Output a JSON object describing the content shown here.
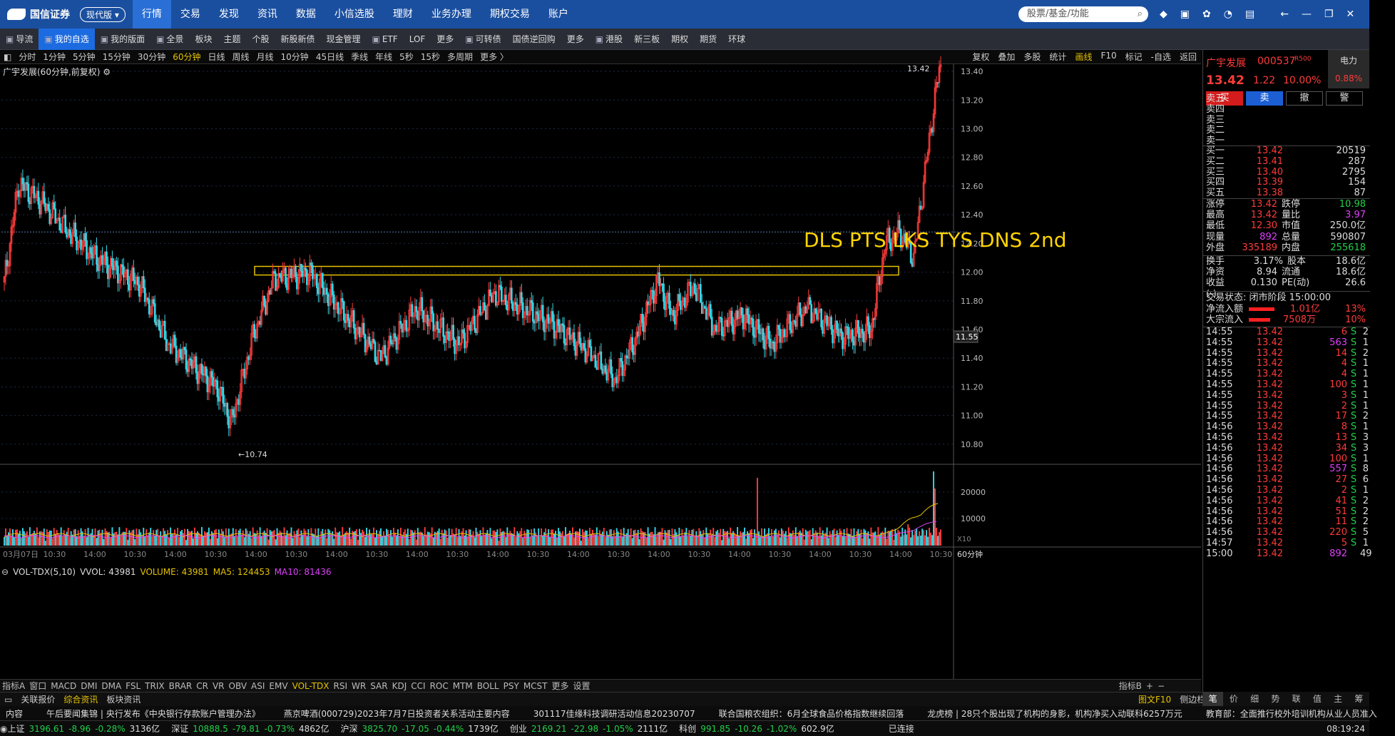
{
  "app": {
    "brand": "国信证券",
    "edition": "现代版"
  },
  "nav": {
    "tabs": [
      "行情",
      "交易",
      "发现",
      "资讯",
      "数据",
      "小信选股",
      "理财",
      "业务办理",
      "期权交易",
      "账户"
    ],
    "search_placeholder": "股票/基金/功能"
  },
  "toolbar": {
    "items": [
      {
        "label": "导流",
        "icon": "send-icon"
      },
      {
        "label": "我的自选",
        "icon": "heart-icon",
        "active": true
      },
      {
        "label": "我的版面",
        "icon": "layout-icon"
      },
      {
        "label": "全景",
        "icon": "chart-icon"
      },
      {
        "label": "板块"
      },
      {
        "label": "主题"
      },
      {
        "label": "个股"
      },
      {
        "label": "新股新债"
      },
      {
        "label": "现金管理"
      },
      {
        "label": "ETF",
        "icon": "grid-icon"
      },
      {
        "label": "LOF"
      },
      {
        "label": "更多"
      },
      {
        "label": "可转债",
        "icon": "bond-icon"
      },
      {
        "label": "国债逆回购"
      },
      {
        "label": "更多"
      },
      {
        "label": "港股",
        "icon": "hk-icon"
      },
      {
        "label": "新三板"
      },
      {
        "label": "期权"
      },
      {
        "label": "期货"
      },
      {
        "label": "环球"
      }
    ]
  },
  "periods": {
    "items": [
      "分时",
      "1分钟",
      "5分钟",
      "15分钟",
      "30分钟",
      "60分钟",
      "日线",
      "周线",
      "月线",
      "10分钟",
      "45日线",
      "季线",
      "年线",
      "5秒",
      "15秒",
      "多周期",
      "更多 〉"
    ],
    "active": "60分钟",
    "right": [
      "复权",
      "叠加",
      "多股",
      "统计",
      "画线",
      "F10",
      "标记",
      "-自选",
      "返回"
    ]
  },
  "chart": {
    "title": "广宇发展(60分钟,前复权)",
    "annotation": "DLS PTS LKS TYS DNS 2nd",
    "high_label": "13.42",
    "low_label": "10.74",
    "current_price_tag": "11.55",
    "period_label": "60分钟",
    "x_multiplier": "X10"
  },
  "volume": {
    "legend": [
      {
        "text": "VOL-TDX(5,10)",
        "color": "#dddddd"
      },
      {
        "text": "VVOL: 43981",
        "color": "#dddddd"
      },
      {
        "text": "VOLUME: 43981",
        "color": "#e6c200"
      },
      {
        "text": "MA5: 124453",
        "color": "#e6c200"
      },
      {
        "text": "MA10: 81436",
        "color": "#e040fb"
      }
    ]
  },
  "chart_data": {
    "type": "candlestick",
    "title": "广宇发展(60分钟,前复权)",
    "y_ticks": [
      "13.40",
      "13.20",
      "13.00",
      "12.80",
      "12.60",
      "12.40",
      "12.20",
      "12.00",
      "11.80",
      "11.60",
      "11.40",
      "11.20",
      "11.00",
      "10.80"
    ],
    "ylim": [
      10.7,
      13.45
    ],
    "vol_ticks": [
      "20000",
      "10000"
    ],
    "x_ticks": [
      "03月07日",
      "10:30",
      "14:00",
      "10:30",
      "14:00",
      "10:30",
      "14:00",
      "10:30",
      "14:00",
      "10:30",
      "14:00",
      "10:30",
      "14:00",
      "10:30",
      "14:00",
      "10:30",
      "14:00",
      "10:30",
      "14:00",
      "10:30",
      "14:00",
      "10:30",
      "14:00",
      "10:30"
    ],
    "resistance_zone": [
      11.98,
      12.04
    ],
    "high": 13.42,
    "low": 10.74,
    "last": 13.42
  },
  "indicators": {
    "items": [
      "指标A",
      "窗口",
      "MACD",
      "DMI",
      "DMA",
      "FSL",
      "TRIX",
      "BRAR",
      "CR",
      "VR",
      "OBV",
      "ASI",
      "EMV",
      "VOL-TDX",
      "RSI",
      "WR",
      "SAR",
      "KDJ",
      "CCI",
      "ROC",
      "MTM",
      "BOLL",
      "PSY",
      "MCST",
      "更多",
      "设置"
    ],
    "active": "VOL-TDX",
    "right": [
      "指标B",
      "+",
      "−"
    ]
  },
  "news": {
    "items": [
      "关联报价",
      "综合资讯",
      "板块资讯"
    ],
    "right": [
      "图文F10",
      "侧边栏"
    ]
  },
  "panel_tabs": [
    "笔",
    "价",
    "细",
    "势",
    "联",
    "值",
    "主",
    "筹"
  ],
  "ticker": [
    "内容",
    "午后要闻集锦 | 央行发布《中央银行存款账户管理办法》",
    "燕京啤酒(000729)2023年7月7日投资者关系活动主要内容",
    "301117佳缘科技调研活动信息20230707",
    "联合国粮农组织：6月全球食品价格指数继续回落",
    "龙虎榜 | 28只个股出现了机构的身影，机构净买入动联科6257万元",
    "教育部：全面推行校外培训机构从业人员准入"
  ],
  "status": {
    "indices": [
      {
        "name": "上证",
        "price": "3196.61",
        "chg": "-8.96",
        "pct": "-0.28%",
        "amt": "3136亿"
      },
      {
        "name": "深证",
        "price": "10888.5",
        "chg": "-79.81",
        "pct": "-0.73%",
        "amt": "4862亿"
      },
      {
        "name": "沪深",
        "price": "3825.70",
        "chg": "-17.05",
        "pct": "-0.44%",
        "amt": "1739亿"
      },
      {
        "name": "创业",
        "price": "2169.21",
        "chg": "-22.98",
        "pct": "-1.05%",
        "amt": "2111亿"
      },
      {
        "name": "科创",
        "price": "991.85",
        "chg": "-10.26",
        "pct": "-1.02%",
        "amt": "602.9亿"
      }
    ],
    "connection": "已连接",
    "time": "08:19:24"
  },
  "quote": {
    "name": "广宇发展",
    "code": "000537",
    "badge": "R500",
    "price": "13.42",
    "chg": "1.22",
    "chg_pct": "10.00%",
    "sector": "电力",
    "sector_pct": "0.88%",
    "buttons": [
      "买",
      "卖",
      "撤",
      "警"
    ],
    "asks": [
      {
        "label": "卖五",
        "price": "",
        "vol": ""
      },
      {
        "label": "卖四",
        "price": "",
        "vol": ""
      },
      {
        "label": "卖三",
        "price": "",
        "vol": ""
      },
      {
        "label": "卖二",
        "price": "",
        "vol": ""
      },
      {
        "label": "卖一",
        "price": "",
        "vol": ""
      }
    ],
    "bids": [
      {
        "label": "买一",
        "price": "13.42",
        "vol": "20519"
      },
      {
        "label": "买二",
        "price": "13.41",
        "vol": "287"
      },
      {
        "label": "买三",
        "price": "13.40",
        "vol": "2795"
      },
      {
        "label": "买四",
        "price": "13.39",
        "vol": "154"
      },
      {
        "label": "买五",
        "price": "13.38",
        "vol": "87"
      }
    ],
    "stats": [
      {
        "k": "涨停",
        "v": "13.42",
        "vc": "up",
        "k2": "跌停",
        "v2": "10.98",
        "v2c": "dn"
      },
      {
        "k": "最高",
        "v": "13.42",
        "vc": "up",
        "k2": "量比",
        "v2": "3.97",
        "v2c": "mg"
      },
      {
        "k": "最低",
        "v": "12.30",
        "vc": "up",
        "k2": "市值",
        "v2": "250.0亿",
        "v2c": "wh"
      },
      {
        "k": "现量",
        "v": "892",
        "vc": "mg",
        "k2": "总量",
        "v2": "590807",
        "v2c": "wh"
      },
      {
        "k": "外盘",
        "v": "335189",
        "vc": "up",
        "k2": "内盘",
        "v2": "255618",
        "v2c": "dn"
      }
    ],
    "stats2": [
      {
        "k": "换手",
        "v": "3.17%",
        "k2": "股本",
        "v2": "18.6亿"
      },
      {
        "k": "净资",
        "v": "8.94",
        "k2": "流通",
        "v2": "18.6亿"
      },
      {
        "k": "收益(-)",
        "v": "0.130",
        "k2": "PE(动)",
        "v2": "26.6"
      }
    ],
    "trade_status": "交易状态: 闭市阶段 15:00:00",
    "flows": [
      {
        "label": "净流入额",
        "value": "1.01亿",
        "pct": "13%"
      },
      {
        "label": "大宗流入",
        "value": "7508万",
        "pct": "10%"
      }
    ],
    "ticks": [
      {
        "t": "14:55",
        "p": "13.42",
        "v": "6",
        "vc": "up",
        "s": "S",
        "n": "2"
      },
      {
        "t": "14:55",
        "p": "13.42",
        "v": "563",
        "vc": "mg",
        "s": "S",
        "n": "1"
      },
      {
        "t": "14:55",
        "p": "13.42",
        "v": "14",
        "vc": "up",
        "s": "S",
        "n": "2"
      },
      {
        "t": "14:55",
        "p": "13.42",
        "v": "4",
        "vc": "up",
        "s": "S",
        "n": "1"
      },
      {
        "t": "14:55",
        "p": "13.42",
        "v": "4",
        "vc": "up",
        "s": "S",
        "n": "1"
      },
      {
        "t": "14:55",
        "p": "13.42",
        "v": "100",
        "vc": "up",
        "s": "S",
        "n": "1"
      },
      {
        "t": "14:55",
        "p": "13.42",
        "v": "3",
        "vc": "up",
        "s": "S",
        "n": "1"
      },
      {
        "t": "14:55",
        "p": "13.42",
        "v": "2",
        "vc": "up",
        "s": "S",
        "n": "1"
      },
      {
        "t": "14:55",
        "p": "13.42",
        "v": "17",
        "vc": "up",
        "s": "S",
        "n": "2"
      },
      {
        "t": "14:56",
        "p": "13.42",
        "v": "8",
        "vc": "up",
        "s": "S",
        "n": "1"
      },
      {
        "t": "14:56",
        "p": "13.42",
        "v": "13",
        "vc": "up",
        "s": "S",
        "n": "3"
      },
      {
        "t": "14:56",
        "p": "13.42",
        "v": "34",
        "vc": "up",
        "s": "S",
        "n": "3"
      },
      {
        "t": "14:56",
        "p": "13.42",
        "v": "100",
        "vc": "up",
        "s": "S",
        "n": "1"
      },
      {
        "t": "14:56",
        "p": "13.42",
        "v": "557",
        "vc": "mg",
        "s": "S",
        "n": "8"
      },
      {
        "t": "14:56",
        "p": "13.42",
        "v": "27",
        "vc": "up",
        "s": "S",
        "n": "6"
      },
      {
        "t": "14:56",
        "p": "13.42",
        "v": "2",
        "vc": "up",
        "s": "S",
        "n": "1"
      },
      {
        "t": "14:56",
        "p": "13.42",
        "v": "41",
        "vc": "up",
        "s": "S",
        "n": "2"
      },
      {
        "t": "14:56",
        "p": "13.42",
        "v": "51",
        "vc": "up",
        "s": "S",
        "n": "2"
      },
      {
        "t": "14:56",
        "p": "13.42",
        "v": "11",
        "vc": "up",
        "s": "S",
        "n": "2"
      },
      {
        "t": "14:56",
        "p": "13.42",
        "v": "220",
        "vc": "up",
        "s": "S",
        "n": "5"
      },
      {
        "t": "14:57",
        "p": "13.42",
        "v": "5",
        "vc": "up",
        "s": "S",
        "n": "1"
      },
      {
        "t": "15:00",
        "p": "13.42",
        "v": "892",
        "vc": "mg",
        "s": "",
        "n": "49"
      }
    ]
  }
}
